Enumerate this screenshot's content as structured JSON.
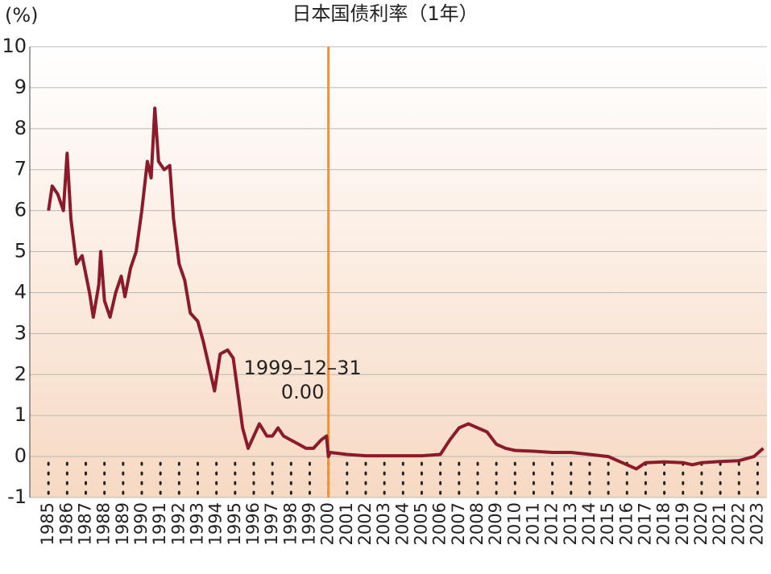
{
  "chart_data": {
    "type": "line",
    "title": "日本国债利率（1年）",
    "y_label": "(%)",
    "x": [
      1985.0,
      1985.2,
      1985.5,
      1985.8,
      1986.0,
      1986.2,
      1986.5,
      1986.8,
      1987.2,
      1987.4,
      1987.7,
      1987.8,
      1988.0,
      1988.3,
      1988.6,
      1988.9,
      1989.1,
      1989.4,
      1989.7,
      1990.0,
      1990.3,
      1990.5,
      1990.7,
      1990.9,
      1991.2,
      1991.5,
      1991.7,
      1992.0,
      1992.3,
      1992.6,
      1993.0,
      1993.3,
      1993.6,
      1993.9,
      1994.2,
      1994.6,
      1994.9,
      1995.2,
      1995.4,
      1995.7,
      1996.0,
      1996.3,
      1996.7,
      1997.0,
      1997.3,
      1997.6,
      1998.0,
      1998.4,
      1998.8,
      1999.2,
      1999.6,
      1999.9,
      2000.0,
      2000.1,
      2001.0,
      2002.0,
      2003.0,
      2004.0,
      2005.0,
      2006.0,
      2006.5,
      2007.0,
      2007.5,
      2008.0,
      2008.5,
      2009.0,
      2009.5,
      2010.0,
      2011.0,
      2012.0,
      2013.0,
      2014.0,
      2015.0,
      2016.0,
      2016.5,
      2017.0,
      2018.0,
      2019.0,
      2019.5,
      2020.0,
      2021.0,
      2022.0,
      2022.8,
      2023.3
    ],
    "series": [
      {
        "name": "日本国债利率（1年）",
        "color": "#8b1a2b",
        "values": [
          6.0,
          6.6,
          6.4,
          6.0,
          7.4,
          5.8,
          4.7,
          4.9,
          4.0,
          3.4,
          4.2,
          5.0,
          3.8,
          3.4,
          4.0,
          4.4,
          3.9,
          4.6,
          5.0,
          6.0,
          7.2,
          6.8,
          8.5,
          7.2,
          7.0,
          7.1,
          5.8,
          4.7,
          4.3,
          3.5,
          3.3,
          2.8,
          2.2,
          1.6,
          2.5,
          2.6,
          2.4,
          1.4,
          0.7,
          0.2,
          0.5,
          0.8,
          0.5,
          0.5,
          0.7,
          0.5,
          0.4,
          0.3,
          0.2,
          0.2,
          0.4,
          0.5,
          0.0,
          0.1,
          0.05,
          0.02,
          0.02,
          0.02,
          0.02,
          0.05,
          0.4,
          0.7,
          0.8,
          0.7,
          0.6,
          0.3,
          0.2,
          0.15,
          0.13,
          0.1,
          0.1,
          0.05,
          0.0,
          -0.2,
          -0.3,
          -0.15,
          -0.13,
          -0.15,
          -0.2,
          -0.15,
          -0.12,
          -0.1,
          0.0,
          0.2
        ]
      }
    ],
    "xlim": [
      1984,
      2023.5
    ],
    "xticks": [
      1985,
      1986,
      1987,
      1988,
      1989,
      1990,
      1991,
      1992,
      1993,
      1994,
      1995,
      1996,
      1997,
      1998,
      1999,
      2000,
      2001,
      2002,
      2003,
      2004,
      2005,
      2006,
      2007,
      2008,
      2009,
      2010,
      2011,
      2012,
      2013,
      2014,
      2015,
      2016,
      2017,
      2018,
      2019,
      2020,
      2021,
      2022,
      2023
    ],
    "ylim": [
      -1,
      10
    ],
    "yticks": [
      -1,
      0,
      1,
      2,
      3,
      4,
      5,
      6,
      7,
      8,
      9,
      10
    ],
    "grid": true,
    "annotation": {
      "x": 2000,
      "label": "1999–12–31",
      "value": 0,
      "value_label": "0.00",
      "color": "#f0903a"
    }
  }
}
